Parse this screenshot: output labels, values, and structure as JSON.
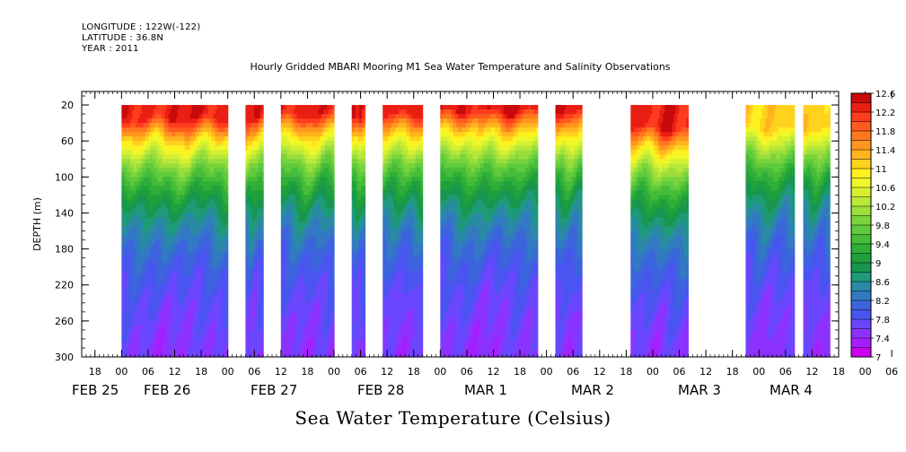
{
  "header": {
    "longitude": "LONGITUDE : 122W(-122)",
    "latitude": "LATITUDE : 36.8N",
    "year": "YEAR : 2011",
    "title": "Hourly Gridded MBARI Mooring M1 Sea Water Temperature and Salinity Observations"
  },
  "colorbar_title": "Sea Water Temperature (Celsius)",
  "chart_data": {
    "type": "heatmap",
    "title": "Hourly Gridded MBARI Mooring M1 Sea Water Temperature and Salinity Observations",
    "subtitle": "Sea Water Temperature (Celsius)",
    "ylabel": "DEPTH (m)",
    "xlabel": "",
    "y_reversed": true,
    "ylim": [
      300,
      5
    ],
    "y_ticks": [
      20,
      60,
      100,
      140,
      180,
      220,
      260,
      300
    ],
    "x_hours_ticks": [
      "18",
      "00",
      "06",
      "12",
      "18",
      "00",
      "06",
      "12",
      "18",
      "00",
      "06",
      "12",
      "18",
      "00",
      "06",
      "12",
      "18",
      "00",
      "06",
      "12",
      "18",
      "00",
      "06",
      "12",
      "18",
      "00",
      "06",
      "12",
      "18",
      "00",
      "06",
      "12"
    ],
    "x_date_labels": [
      "FEB 25",
      "FEB 26",
      "FEB 27",
      "FEB 28",
      "MAR  1",
      "MAR  2",
      "MAR  3",
      "MAR  4"
    ],
    "x_start": "2011-02-25 15:00",
    "x_end": "2011-03-04 18:00",
    "data_blocks": [
      {
        "start": "2011-02-26 00:00",
        "end": "2011-02-26 23:00",
        "surface": 12.3,
        "thermocline_depth": 60
      },
      {
        "start": "2011-02-27 04:00",
        "end": "2011-02-27 07:00",
        "surface": 12.3,
        "thermocline_depth": 60
      },
      {
        "start": "2011-02-27 12:00",
        "end": "2011-02-27 23:00",
        "surface": 12.3,
        "thermocline_depth": 55
      },
      {
        "start": "2011-02-28 04:00",
        "end": "2011-02-28 06:00",
        "surface": 12.3,
        "thermocline_depth": 55
      },
      {
        "start": "2011-02-28 11:00",
        "end": "2011-02-28 19:00",
        "surface": 12.3,
        "thermocline_depth": 55
      },
      {
        "start": "2011-03-01 00:00",
        "end": "2011-03-01 21:00",
        "surface": 12.4,
        "thermocline_depth": 50
      },
      {
        "start": "2011-03-02 02:00",
        "end": "2011-03-02 07:00",
        "surface": 12.4,
        "thermocline_depth": 50
      },
      {
        "start": "2011-03-02 19:00",
        "end": "2011-03-03 07:00",
        "surface": 12.3,
        "thermocline_depth": 70
      },
      {
        "start": "2011-03-03 21:00",
        "end": "2011-03-04 07:00",
        "surface": 11.1,
        "thermocline_depth": 70
      },
      {
        "start": "2011-03-04 10:00",
        "end": "2011-03-04 15:00",
        "surface": 11.1,
        "thermocline_depth": 70
      }
    ],
    "bottom_value": 7.3,
    "colorbar": {
      "levels": [
        7,
        7.2,
        7.4,
        7.6,
        7.8,
        8,
        8.2,
        8.4,
        8.6,
        8.8,
        9,
        9.2,
        9.4,
        9.6,
        9.8,
        10,
        10.2,
        10.4,
        10.6,
        10.8,
        11,
        11.2,
        11.4,
        11.6,
        11.8,
        12,
        12.2,
        12.4,
        12.6
      ],
      "labels": [
        "7",
        "7.4",
        "7.8",
        "8.2",
        "8.6",
        "9",
        "9.4",
        "9.8",
        "10.2",
        "10.6",
        "11",
        "11.4",
        "11.8",
        "12.2",
        "12.6"
      ],
      "colors": [
        "#cc00ee",
        "#a51eff",
        "#8c32ff",
        "#6a46ff",
        "#4a55f0",
        "#3c64dc",
        "#3278c3",
        "#2a8aa6",
        "#1f9a78",
        "#189650",
        "#1fa03c",
        "#2fae38",
        "#46bc38",
        "#5fca3c",
        "#7ad43c",
        "#9ade3c",
        "#b9e83a",
        "#d6f030",
        "#eef828",
        "#fff020",
        "#ffd21e",
        "#ffb41e",
        "#ff961e",
        "#ff781e",
        "#ff5a1e",
        "#ff3c1e",
        "#eb1e14",
        "#c80a0a"
      ]
    }
  }
}
